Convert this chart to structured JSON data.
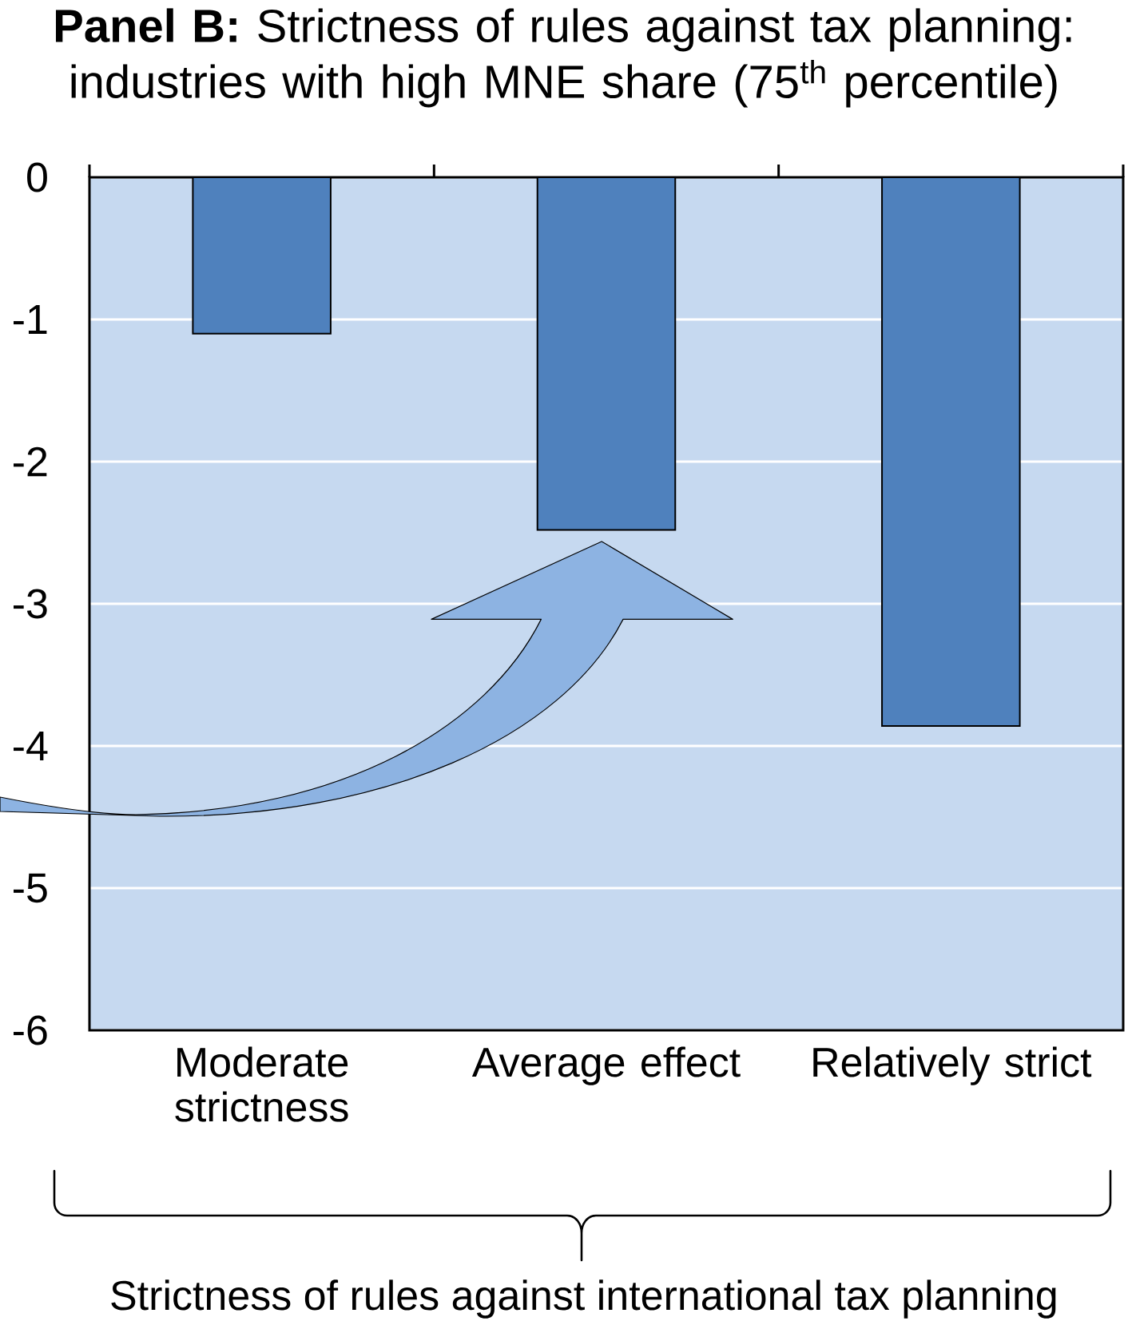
{
  "chart_data": {
    "type": "bar",
    "title": "**Panel B:** Strictness of rules against tax planning: industries with high MNE share (75$^{th}$ percentile)",
    "xlabel": "Strictness of rules against international tax planning",
    "categories": [
      "Moderate strictness",
      "Average effect",
      "Relatively strict"
    ],
    "values": [
      -1.1,
      -2.48,
      -3.86
    ],
    "color": "#4f81bd",
    "ylim": [
      -6,
      0
    ],
    "yticks": [
      0,
      -1,
      -2,
      -3,
      -4,
      -5,
      -6
    ],
    "grid": "y"
  }
}
